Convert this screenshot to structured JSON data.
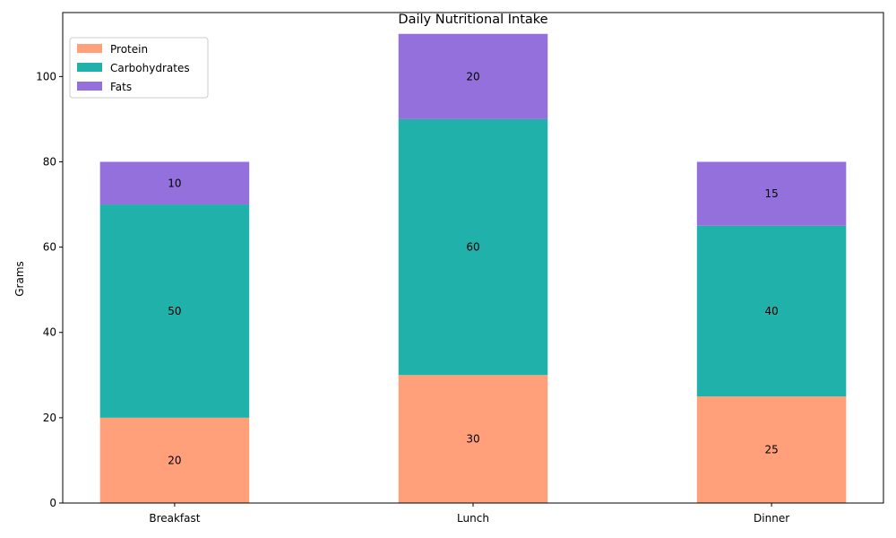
{
  "chart_data": {
    "type": "bar",
    "stacked": true,
    "title": "Daily Nutritional Intake",
    "xlabel": "",
    "ylabel": "Grams",
    "ylim": [
      0,
      115
    ],
    "yticks": [
      0,
      20,
      40,
      60,
      80,
      100
    ],
    "categories": [
      "Breakfast",
      "Lunch",
      "Dinner"
    ],
    "series": [
      {
        "name": "Protein",
        "values": [
          20,
          30,
          25
        ],
        "color": "#FFA07A"
      },
      {
        "name": "Carbohydrates",
        "values": [
          50,
          60,
          40
        ],
        "color": "#20B2AA"
      },
      {
        "name": "Fats",
        "values": [
          10,
          20,
          15
        ],
        "color": "#9370DB"
      }
    ],
    "legend": "top-left",
    "grid": false
  }
}
